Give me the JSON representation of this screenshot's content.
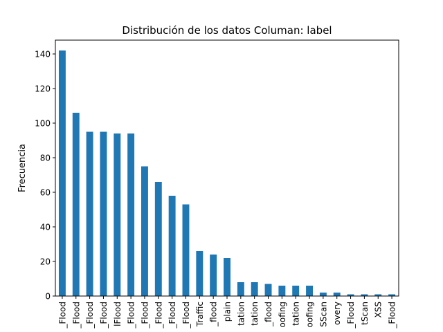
{
  "chart_data": {
    "type": "bar",
    "title": "Distribución de los datos Columan: label",
    "xlabel": "",
    "ylabel": "Frecuencia",
    "ylim": [
      0,
      148
    ],
    "yticks": [
      0,
      20,
      40,
      60,
      80,
      100,
      120,
      140
    ],
    "grid": false,
    "legend": "none",
    "bar_color": "#1f77b4",
    "categories": [
      "_Flood",
      "_Flood",
      "_Flood",
      "_Flood",
      "lFlood",
      "_Flood",
      "_Flood",
      "_Flood",
      "_Flood",
      "_Flood",
      "Traffic",
      "_flood",
      "plain",
      "tation",
      "tation",
      "_flood",
      "oofing",
      "tation",
      "oofing",
      "SScan",
      "overy",
      "_Flood",
      "tScan",
      "XSS",
      "_Flood"
    ],
    "values": [
      142,
      106,
      95,
      95,
      94,
      94,
      75,
      66,
      58,
      53,
      26,
      24,
      22,
      8,
      8,
      7,
      6,
      6,
      6,
      2,
      2,
      1,
      1,
      1,
      1
    ]
  }
}
